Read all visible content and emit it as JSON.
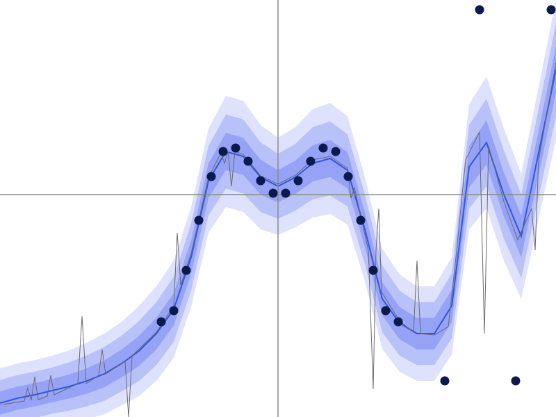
{
  "chart_data": {
    "type": "line",
    "xlim": [
      -4,
      4
    ],
    "ylim": [
      -3.2,
      2.8
    ],
    "crosshair": true,
    "crosshair_color": "#8a8a8a",
    "series": [
      {
        "type": "band-line",
        "color": "#2f57e2",
        "band_color": "#5a6cf2",
        "x": [
          -4,
          -3.75,
          -3.5,
          -3.25,
          -3,
          -2.75,
          -2.5,
          -2.25,
          -2,
          -1.75,
          -1.5,
          -1.25,
          -1,
          -0.75,
          -0.5,
          -0.25,
          0,
          0.25,
          0.5,
          0.75,
          1,
          1.25,
          1.5,
          1.75,
          2,
          2.25,
          2.5,
          2.75,
          3,
          3.25,
          3.5,
          3.75,
          4
        ],
        "values": [
          -3.0,
          -2.93,
          -2.88,
          -2.82,
          -2.76,
          -2.68,
          -2.58,
          -2.43,
          -2.25,
          -2.0,
          -1.65,
          -0.9,
          0.2,
          0.62,
          0.55,
          0.25,
          0.12,
          0.25,
          0.45,
          0.52,
          0.35,
          -0.5,
          -1.5,
          -1.85,
          -2.0,
          -2.0,
          -1.6,
          0.4,
          0.75,
          0.0,
          -0.6,
          0.6,
          1.8
        ],
        "spread": [
          0.5,
          0.5,
          0.5,
          0.5,
          0.52,
          0.55,
          0.58,
          0.6,
          0.65,
          0.68,
          0.7,
          0.72,
          0.75,
          0.8,
          0.8,
          0.75,
          0.7,
          0.72,
          0.78,
          0.8,
          0.78,
          0.75,
          0.72,
          0.7,
          0.68,
          0.68,
          0.7,
          0.9,
          0.95,
          0.95,
          0.9,
          0.95,
          1.0
        ]
      },
      {
        "type": "line",
        "color": "#6a6a6a",
        "x": [
          -3.95,
          -3.65,
          -3.6,
          -3.55,
          -3.5,
          -3.45,
          -3.32,
          -3.27,
          -3.22,
          -2.88,
          -2.82,
          -2.76,
          -2.58,
          -2.53,
          -2.48,
          -2.2,
          -2.15,
          -2.1,
          -1.75,
          -1.5,
          -1.45,
          -1.4,
          -1.25,
          -1.0,
          -0.82,
          -0.77,
          -0.72,
          -0.67,
          -0.62,
          -0.5,
          -0.25,
          0,
          0.25,
          0.5,
          0.75,
          1.0,
          1.05,
          1.1,
          1.3,
          1.37,
          1.41,
          1.45,
          1.49,
          1.75,
          1.95,
          2.0,
          2.05,
          2.25,
          2.45,
          2.55,
          2.7,
          2.9,
          2.97,
          3.03,
          3.25,
          3.45,
          3.65,
          3.7,
          3.75,
          4.0
        ],
        "values": [
          -3.02,
          -2.97,
          -2.78,
          -2.96,
          -2.62,
          -2.95,
          -2.9,
          -2.6,
          -2.88,
          -2.72,
          -1.75,
          -2.72,
          -2.6,
          -2.23,
          -2.58,
          -2.4,
          -3.2,
          -2.32,
          -1.98,
          -1.6,
          -0.55,
          -1.3,
          -0.85,
          0.25,
          0.6,
          0.45,
          0.62,
          0.12,
          0.62,
          0.58,
          0.27,
          0.15,
          0.28,
          0.5,
          0.55,
          0.38,
          -0.05,
          0.1,
          -0.8,
          -2.8,
          -0.8,
          -0.2,
          -1.4,
          -1.82,
          -1.98,
          -0.95,
          -2.0,
          -2.02,
          -1.9,
          -1.0,
          0.5,
          0.9,
          -2.0,
          0.7,
          -0.1,
          -0.65,
          -0.2,
          -0.8,
          0.5,
          1.9
        ]
      },
      {
        "type": "scatter",
        "color": "#0b1a4d",
        "x": [
          -1.68,
          -1.5,
          -1.32,
          -1.14,
          -0.96,
          -0.79,
          -0.61,
          -0.43,
          -0.25,
          -0.07,
          0.11,
          0.29,
          0.47,
          0.65,
          0.83,
          1.01,
          1.19,
          1.37,
          1.55,
          1.73,
          2.4,
          3.42,
          2.9,
          3.93
        ],
        "values": [
          -1.83,
          -1.67,
          -1.09,
          -0.37,
          0.26,
          0.62,
          0.67,
          0.48,
          0.2,
          0.02,
          0.02,
          0.2,
          0.48,
          0.67,
          0.62,
          0.26,
          -0.37,
          -1.09,
          -1.67,
          -1.83,
          -2.68,
          -2.68,
          2.66,
          2.66
        ]
      }
    ]
  }
}
